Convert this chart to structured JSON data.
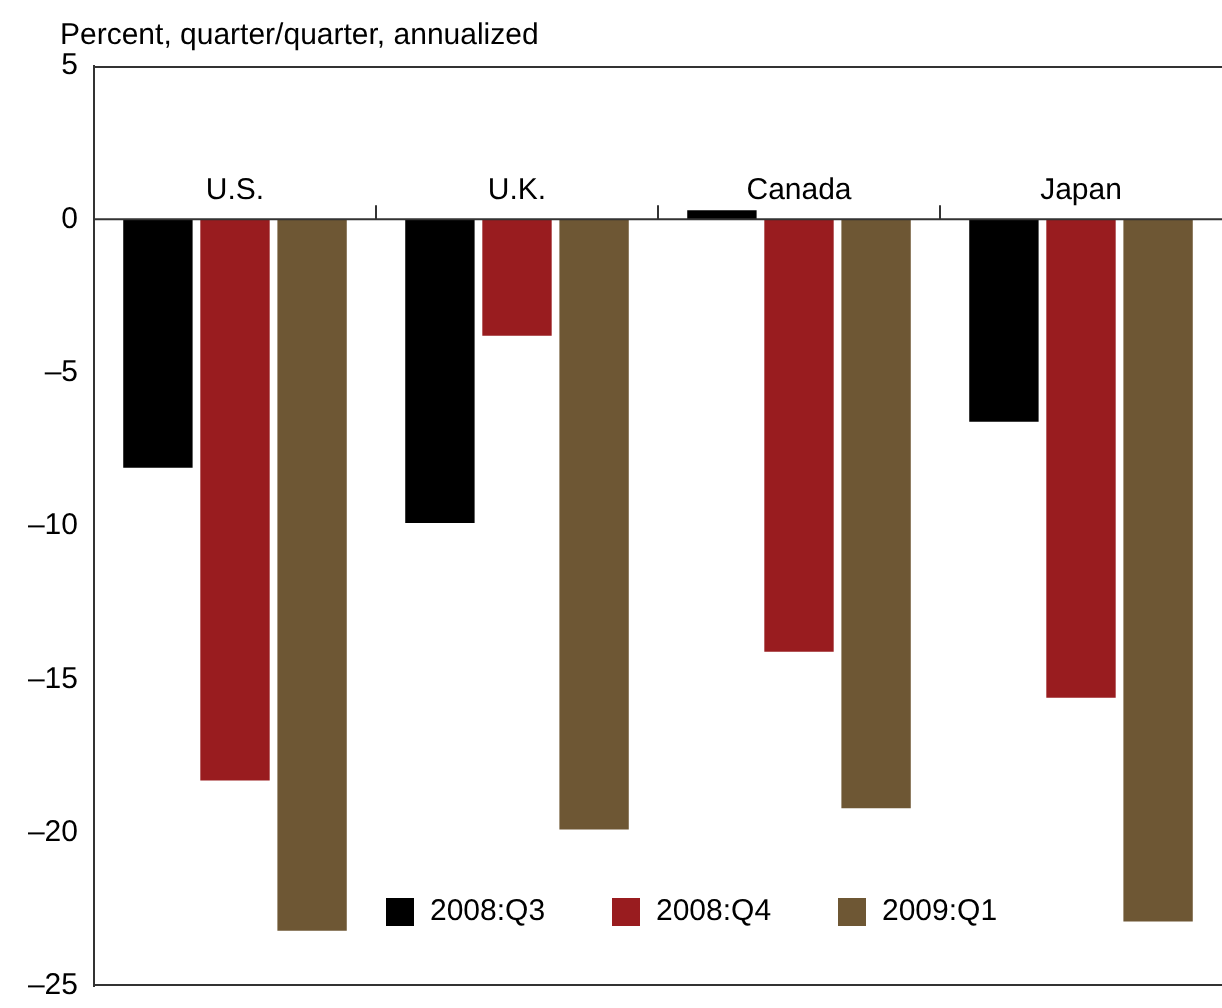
{
  "chart_data": {
    "type": "bar",
    "ylabel": "Percent, quarter/quarter, annualized",
    "categories": [
      "U.S.",
      "U.K.",
      "Canada",
      "Japan"
    ],
    "series": [
      {
        "name": "2008:Q3",
        "color": "#000000",
        "values": [
          -8.1,
          -9.9,
          0.3,
          -6.6
        ]
      },
      {
        "name": "2008:Q4",
        "color": "#991c1f",
        "values": [
          -18.3,
          -3.8,
          -14.1,
          -15.6
        ]
      },
      {
        "name": "2009:Q1",
        "color": "#6e5734",
        "values": [
          -23.2,
          -19.9,
          -19.2,
          -22.9
        ]
      }
    ],
    "ylim": [
      -25,
      5
    ],
    "yticks": [
      5,
      0,
      {
        "value": -5,
        "label": "–5"
      },
      {
        "value": -10,
        "label": "–10"
      },
      {
        "value": -15,
        "label": "–15"
      },
      {
        "value": -20,
        "label": "–20"
      },
      {
        "value": -25,
        "label": "–25"
      }
    ],
    "grid": false,
    "legend": "bottom"
  }
}
